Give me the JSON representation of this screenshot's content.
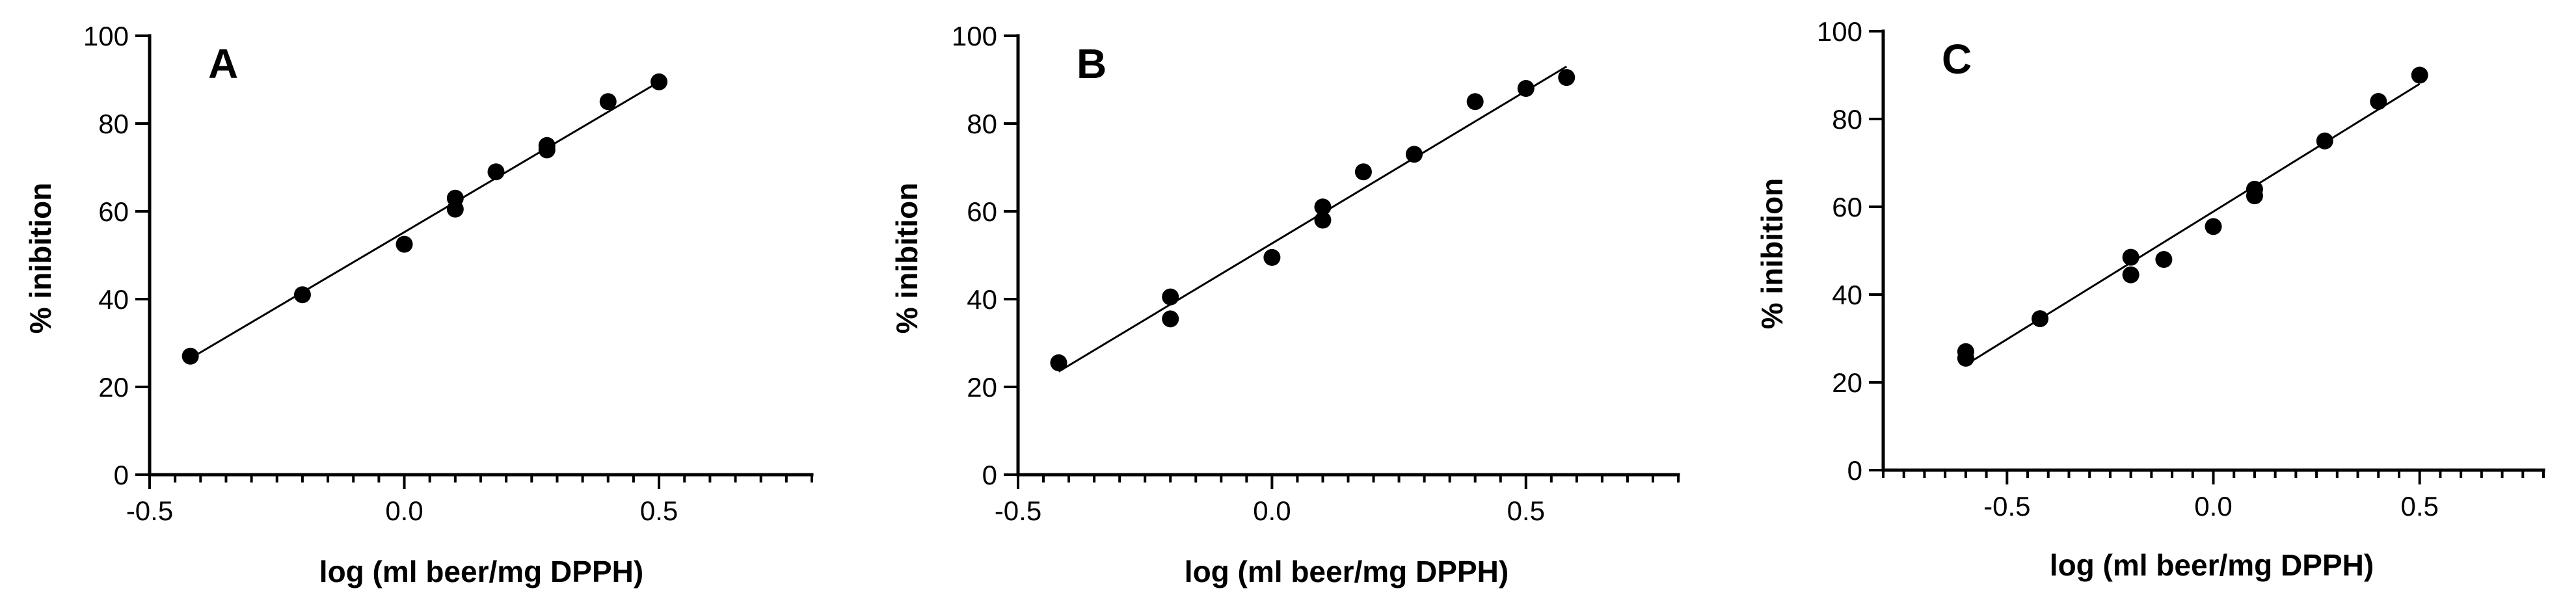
{
  "chart_data": [
    {
      "type": "scatter",
      "panel_label": "A",
      "xlabel": "log (ml beer/mg DPPH)",
      "ylabel": "% inibition",
      "xlim": [
        -0.5,
        0.8
      ],
      "ylim": [
        0,
        100
      ],
      "xticks": [
        -0.5,
        0.0,
        0.5
      ],
      "xtick_labels": [
        "-0.5",
        "0.0",
        "0.5"
      ],
      "yticks": [
        0,
        20,
        40,
        60,
        80,
        100
      ],
      "ytick_labels": [
        "0",
        "20",
        "40",
        "60",
        "80",
        "100"
      ],
      "x_minor_step": 0.05,
      "points": [
        {
          "x": -0.42,
          "y": 27
        },
        {
          "x": -0.2,
          "y": 41
        },
        {
          "x": 0.0,
          "y": 52.5
        },
        {
          "x": 0.1,
          "y": 63
        },
        {
          "x": 0.1,
          "y": 60.5
        },
        {
          "x": 0.18,
          "y": 69
        },
        {
          "x": 0.28,
          "y": 74
        },
        {
          "x": 0.28,
          "y": 75
        },
        {
          "x": 0.4,
          "y": 85
        },
        {
          "x": 0.5,
          "y": 89.5
        }
      ],
      "fit_line": {
        "x": [
          -0.42,
          0.5
        ],
        "y": [
          26.5,
          89.5
        ]
      }
    },
    {
      "type": "scatter",
      "panel_label": "B",
      "xlabel": "log (ml beer/mg DPPH)",
      "ylabel": "% inibition",
      "xlim": [
        -0.5,
        0.8
      ],
      "ylim": [
        0,
        100
      ],
      "xticks": [
        -0.5,
        0.0,
        0.5
      ],
      "xtick_labels": [
        "-0.5",
        "0.0",
        "0.5"
      ],
      "yticks": [
        0,
        20,
        40,
        60,
        80,
        100
      ],
      "ytick_labels": [
        "0",
        "20",
        "40",
        "60",
        "80",
        "100"
      ],
      "x_minor_step": 0.05,
      "points": [
        {
          "x": -0.42,
          "y": 25.5
        },
        {
          "x": -0.2,
          "y": 40.5
        },
        {
          "x": -0.2,
          "y": 35.5
        },
        {
          "x": 0.0,
          "y": 49.5
        },
        {
          "x": 0.1,
          "y": 61
        },
        {
          "x": 0.1,
          "y": 58
        },
        {
          "x": 0.18,
          "y": 69
        },
        {
          "x": 0.28,
          "y": 73
        },
        {
          "x": 0.4,
          "y": 85
        },
        {
          "x": 0.5,
          "y": 88
        },
        {
          "x": 0.58,
          "y": 90.5
        }
      ],
      "fit_line": {
        "x": [
          -0.42,
          0.58
        ],
        "y": [
          23.5,
          93
        ]
      }
    },
    {
      "type": "scatter",
      "panel_label": "C",
      "xlabel": "log (ml beer/mg DPPH)",
      "ylabel": "% inibition",
      "xlim": [
        -0.8,
        0.8
      ],
      "ylim": [
        0,
        100
      ],
      "xticks": [
        -0.5,
        0.0,
        0.5
      ],
      "xtick_labels": [
        "-0.5",
        "0.0",
        "0.5"
      ],
      "yticks": [
        0,
        20,
        40,
        60,
        80,
        100
      ],
      "ytick_labels": [
        "0",
        "20",
        "40",
        "60",
        "80",
        "100"
      ],
      "x_minor_step": 0.05,
      "points": [
        {
          "x": -0.6,
          "y": 27
        },
        {
          "x": -0.6,
          "y": 25.5
        },
        {
          "x": -0.42,
          "y": 34.5
        },
        {
          "x": -0.2,
          "y": 48.5
        },
        {
          "x": -0.2,
          "y": 44.5
        },
        {
          "x": -0.12,
          "y": 48
        },
        {
          "x": 0.0,
          "y": 55.5
        },
        {
          "x": 0.1,
          "y": 64
        },
        {
          "x": 0.1,
          "y": 62.5
        },
        {
          "x": 0.27,
          "y": 75
        },
        {
          "x": 0.4,
          "y": 84
        },
        {
          "x": 0.5,
          "y": 90
        }
      ],
      "fit_line": {
        "x": [
          -0.6,
          0.5
        ],
        "y": [
          24,
          88
        ]
      }
    }
  ]
}
